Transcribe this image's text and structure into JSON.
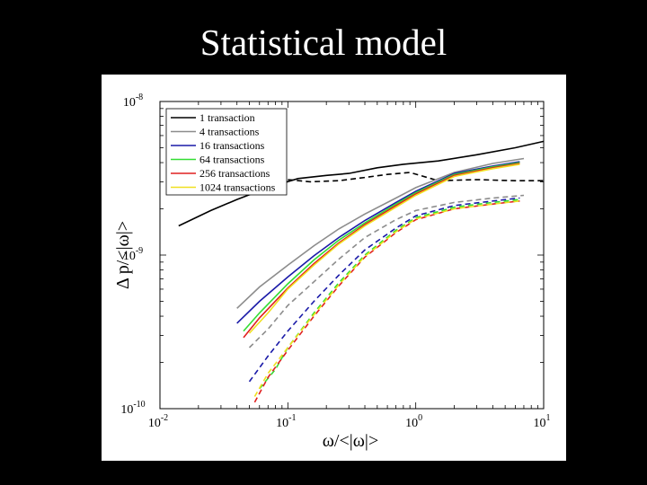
{
  "slide": {
    "title": "Statistical model"
  },
  "chart_data": {
    "type": "line",
    "title": "",
    "xlabel": "ω/<|ω|>",
    "ylabel": "Δ p/<|ω|>",
    "xscale": "log",
    "yscale": "log",
    "xlim": [
      0.01,
      10
    ],
    "ylim": [
      1e-10,
      1e-08
    ],
    "grid": false,
    "legend_position": "top-left",
    "x_ticks": [
      {
        "base": "10",
        "exp": "-2"
      },
      {
        "base": "10",
        "exp": "-1"
      },
      {
        "base": "10",
        "exp": "0"
      },
      {
        "base": "10",
        "exp": "1"
      }
    ],
    "y_ticks": [
      {
        "base": "10",
        "exp": "-8"
      },
      {
        "base": "10",
        "exp": "-9"
      },
      {
        "base": "10",
        "exp": "-10"
      }
    ],
    "series": [
      {
        "name": "1 transaction",
        "color": "#000000",
        "dash": "solid",
        "x": [
          0.014,
          0.025,
          0.04,
          0.07,
          0.12,
          0.2,
          0.3,
          0.5,
          0.8,
          1.5,
          3,
          6,
          10
        ],
        "y": [
          1.55e-09,
          1.95e-09,
          2.3e-09,
          2.75e-09,
          3.15e-09,
          3.3e-09,
          3.4e-09,
          3.7e-09,
          3.9e-09,
          4.1e-09,
          4.5e-09,
          5e-09,
          5.5e-09
        ]
      },
      {
        "name": "1 transaction (dashed)",
        "color": "#000000",
        "dash": "dashed",
        "x": [
          0.1,
          0.15,
          0.25,
          0.4,
          0.6,
          0.9,
          1.5,
          3,
          6,
          10
        ],
        "y": [
          3.1e-09,
          3e-09,
          3.05e-09,
          3.2e-09,
          3.35e-09,
          3.45e-09,
          3.05e-09,
          3.1e-09,
          3.05e-09,
          3.05e-09
        ]
      },
      {
        "name": "4 transactions",
        "color": "#8c8c8c",
        "dash": "solid",
        "x": [
          0.04,
          0.06,
          0.1,
          0.16,
          0.25,
          0.4,
          0.7,
          1.0,
          2.0,
          4.0,
          7.0
        ],
        "y": [
          4.5e-10,
          6.2e-10,
          8.6e-10,
          1.15e-09,
          1.48e-09,
          1.85e-09,
          2.35e-09,
          2.75e-09,
          3.45e-09,
          3.95e-09,
          4.25e-09
        ]
      },
      {
        "name": "4 transactions (dashed)",
        "color": "#8c8c8c",
        "dash": "dashed",
        "x": [
          0.05,
          0.07,
          0.1,
          0.16,
          0.25,
          0.4,
          0.7,
          1.0,
          2.0,
          4.0,
          7.0
        ],
        "y": [
          2.5e-10,
          3.3e-10,
          4.7e-10,
          6.7e-10,
          9.4e-10,
          1.3e-09,
          1.7e-09,
          1.95e-09,
          2.2e-09,
          2.35e-09,
          2.45e-09
        ]
      },
      {
        "name": "16 transactions",
        "color": "#1a1aa8",
        "dash": "solid",
        "x": [
          0.04,
          0.06,
          0.1,
          0.16,
          0.25,
          0.4,
          0.7,
          1.0,
          2.0,
          4.0,
          6.5
        ],
        "y": [
          3.6e-10,
          5e-10,
          7.2e-10,
          9.9e-10,
          1.3e-09,
          1.68e-09,
          2.2e-09,
          2.6e-09,
          3.4e-09,
          3.8e-09,
          4.05e-09
        ]
      },
      {
        "name": "16 transactions (dashed)",
        "color": "#1a1aa8",
        "dash": "dashed",
        "x": [
          0.05,
          0.07,
          0.1,
          0.16,
          0.25,
          0.4,
          0.7,
          1.0,
          2.0,
          4.0,
          6.5
        ],
        "y": [
          1.5e-10,
          2.2e-10,
          3.2e-10,
          5e-10,
          7.4e-10,
          1.08e-09,
          1.5e-09,
          1.8e-09,
          2.1e-09,
          2.25e-09,
          2.35e-09
        ]
      },
      {
        "name": "64 transactions",
        "color": "#33dd33",
        "dash": "solid",
        "x": [
          0.045,
          0.06,
          0.1,
          0.16,
          0.25,
          0.4,
          0.7,
          1.0,
          2.0,
          4.0,
          6.5
        ],
        "y": [
          3.2e-10,
          4.2e-10,
          6.5e-10,
          9.3e-10,
          1.25e-09,
          1.62e-09,
          2.15e-09,
          2.55e-09,
          3.35e-09,
          3.75e-09,
          4e-09
        ]
      },
      {
        "name": "64 transactions (dashed)",
        "color": "#33dd33",
        "dash": "dashed",
        "x": [
          0.06,
          0.08,
          0.1,
          0.16,
          0.25,
          0.4,
          0.7,
          1.0,
          2.0,
          4.0,
          6.5
        ],
        "y": [
          1.35e-10,
          1.8e-10,
          2.5e-10,
          4.2e-10,
          6.6e-10,
          1e-09,
          1.45e-09,
          1.75e-09,
          2.05e-09,
          2.2e-09,
          2.3e-09
        ]
      },
      {
        "name": "256 transactions",
        "color": "#e02020",
        "dash": "solid",
        "x": [
          0.045,
          0.06,
          0.1,
          0.16,
          0.25,
          0.4,
          0.7,
          1.0,
          2.0,
          4.0,
          6.5
        ],
        "y": [
          2.9e-10,
          3.9e-10,
          6.1e-10,
          8.8e-10,
          1.2e-09,
          1.58e-09,
          2.1e-09,
          2.5e-09,
          3.3e-09,
          3.7e-09,
          3.95e-09
        ]
      },
      {
        "name": "256 transactions (dashed)",
        "color": "#e02020",
        "dash": "dashed",
        "x": [
          0.055,
          0.07,
          0.1,
          0.16,
          0.25,
          0.4,
          0.7,
          1.0,
          2.0,
          4.0,
          6.5
        ],
        "y": [
          1.1e-10,
          1.6e-10,
          2.4e-10,
          4e-10,
          6.3e-10,
          9.7e-10,
          1.4e-09,
          1.7e-09,
          2e-09,
          2.15e-09,
          2.25e-09
        ]
      },
      {
        "name": "1024 transactions",
        "color": "#f0e020",
        "dash": "solid",
        "x": [
          0.05,
          0.07,
          0.1,
          0.16,
          0.25,
          0.4,
          0.7,
          1.0,
          2.0,
          4.0,
          6.5
        ],
        "y": [
          3.1e-10,
          4.2e-10,
          6e-10,
          8.6e-10,
          1.18e-09,
          1.55e-09,
          2.05e-09,
          2.45e-09,
          3.25e-09,
          3.65e-09,
          3.9e-09
        ]
      },
      {
        "name": "1024 transactions (dashed)",
        "color": "#f0e020",
        "dash": "dashed",
        "x": [
          0.055,
          0.07,
          0.1,
          0.16,
          0.25,
          0.4,
          0.7,
          1.0,
          2.0,
          4.0,
          6.5
        ],
        "y": [
          1.2e-10,
          1.7e-10,
          2.5e-10,
          4.1e-10,
          6.4e-10,
          9.8e-10,
          1.42e-09,
          1.72e-09,
          2e-09,
          2.15e-09,
          2.25e-09
        ]
      }
    ],
    "legend": [
      {
        "label": "1 transaction",
        "color": "#000000"
      },
      {
        "label": "4 transactions",
        "color": "#8c8c8c"
      },
      {
        "label": "16 transactions",
        "color": "#1a1aa8"
      },
      {
        "label": "64 transactions",
        "color": "#33dd33"
      },
      {
        "label": "256 transactions",
        "color": "#e02020"
      },
      {
        "label": "1024 transactions",
        "color": "#f0e020"
      }
    ]
  }
}
